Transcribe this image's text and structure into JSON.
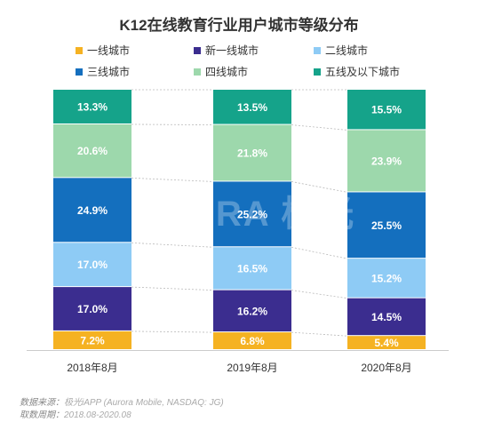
{
  "watermark": "URORA 极光",
  "footer": {
    "source_label": "数据来源：",
    "source_value": "极光iAPP (Aurora Mobile, NASDAQ: JG)",
    "period_label": "取数周期：",
    "period_value": "2018.08-2020.08"
  },
  "chart_data": {
    "type": "bar",
    "stacked": true,
    "title": "K12在线教育行业用户城市等级分布",
    "xlabel": "",
    "ylabel": "",
    "ylim": [
      0,
      100
    ],
    "legend_position": "top",
    "categories": [
      "2018年8月",
      "2019年8月",
      "2020年8月"
    ],
    "series": [
      {
        "name": "一线城市",
        "color": "#f5b222",
        "values": [
          7.2,
          6.8,
          5.4
        ]
      },
      {
        "name": "新一线城市",
        "color": "#3b2d8f",
        "values": [
          17.0,
          16.2,
          14.5
        ]
      },
      {
        "name": "二线城市",
        "color": "#8ecbf5",
        "values": [
          17.0,
          16.5,
          15.2
        ]
      },
      {
        "name": "三线城市",
        "color": "#146fbe",
        "values": [
          24.9,
          25.2,
          25.5
        ]
      },
      {
        "name": "四线城市",
        "color": "#9dd8ac",
        "values": [
          20.6,
          21.8,
          23.9
        ]
      },
      {
        "name": "五线及以下城市",
        "color": "#15a38a",
        "values": [
          13.3,
          13.5,
          15.5
        ]
      }
    ],
    "data_label_suffix": "%"
  }
}
